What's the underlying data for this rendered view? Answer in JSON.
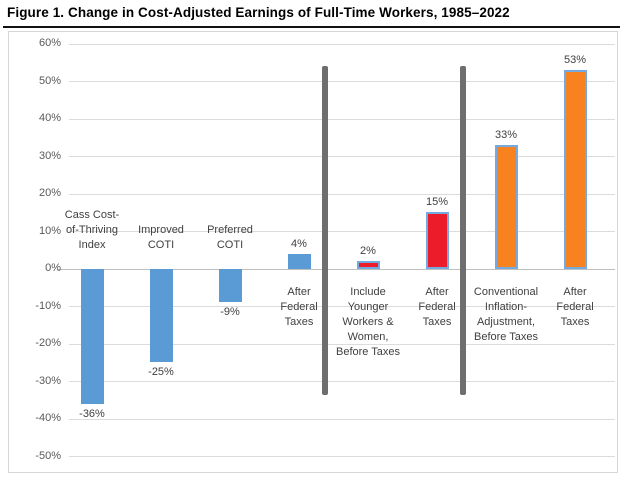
{
  "figure": {
    "title": "Figure 1. Change in Cost-Adjusted Earnings of Full-Time Workers, 1985–2022"
  },
  "chart_data": {
    "type": "bar",
    "title": "Figure 1. Change in Cost-Adjusted Earnings of Full-Time Workers, 1985–2022",
    "xlabel": "",
    "ylabel": "",
    "ylim": [
      -50,
      60
    ],
    "grid": true,
    "legend": "none",
    "yticks": [
      {
        "value": 60,
        "label": "60%"
      },
      {
        "value": 50,
        "label": "50%"
      },
      {
        "value": 40,
        "label": "40%"
      },
      {
        "value": 30,
        "label": "30%"
      },
      {
        "value": 20,
        "label": "20%"
      },
      {
        "value": 10,
        "label": "10%"
      },
      {
        "value": 0,
        "label": "0%"
      },
      {
        "value": -10,
        "label": "-10%"
      },
      {
        "value": -20,
        "label": "-20%"
      },
      {
        "value": -30,
        "label": "-30%"
      },
      {
        "value": -40,
        "label": "-40%"
      },
      {
        "value": -50,
        "label": "-50%"
      }
    ],
    "categories": [
      "Cass Cost-of-Thriving Index",
      "Improved COTI",
      "Preferred COTI",
      "After Federal Taxes",
      "Include Younger Workers & Women, Before Taxes",
      "After Federal Taxes",
      "Conventional Inflation-Adjustment, Before Taxes",
      "After Federal Taxes"
    ],
    "bars": [
      {
        "category_lines": [
          "Cass Cost-",
          "of-Thriving",
          "Index"
        ],
        "value": -36,
        "value_label": "-36%",
        "fill": "#5b9bd5",
        "bordered": false
      },
      {
        "category_lines": [
          "Improved",
          "COTI"
        ],
        "value": -25,
        "value_label": "-25%",
        "fill": "#5b9bd5",
        "bordered": false
      },
      {
        "category_lines": [
          "Preferred",
          "COTI"
        ],
        "value": -9,
        "value_label": "-9%",
        "fill": "#5b9bd5",
        "bordered": false
      },
      {
        "category_lines": [
          "After",
          "Federal",
          "Taxes"
        ],
        "value": 4,
        "value_label": "4%",
        "fill": "#5b9bd5",
        "bordered": false
      },
      {
        "category_lines": [
          "Include",
          "Younger",
          "Workers &",
          "Women,",
          "Before Taxes"
        ],
        "value": 2,
        "value_label": "2%",
        "fill": "#ed1c2b",
        "bordered": true
      },
      {
        "category_lines": [
          "After",
          "Federal",
          "Taxes"
        ],
        "value": 15,
        "value_label": "15%",
        "fill": "#ed1c2b",
        "bordered": true
      },
      {
        "category_lines": [
          "Conventional",
          "Inflation-",
          "Adjustment,",
          "Before Taxes"
        ],
        "value": 33,
        "value_label": "33%",
        "fill": "#f8821f",
        "bordered": true
      },
      {
        "category_lines": [
          "After",
          "Federal",
          "Taxes"
        ],
        "value": 53,
        "value_label": "53%",
        "fill": "#f8821f",
        "bordered": true
      }
    ],
    "group_dividers": {
      "after_bar_indexes": [
        3,
        5
      ],
      "color": "#6e6e6e"
    }
  },
  "colors": {
    "blue_bar": "#5b9bd5",
    "red_bar": "#ed1c2b",
    "orange_bar": "#f8821f",
    "bar_border_blue": "#74aadf",
    "gridline": "#dcdcdc",
    "zero_axis": "#bfbfbf",
    "divider": "#6e6e6e",
    "tick_text": "#595959",
    "label_text": "#3f3f3f"
  }
}
